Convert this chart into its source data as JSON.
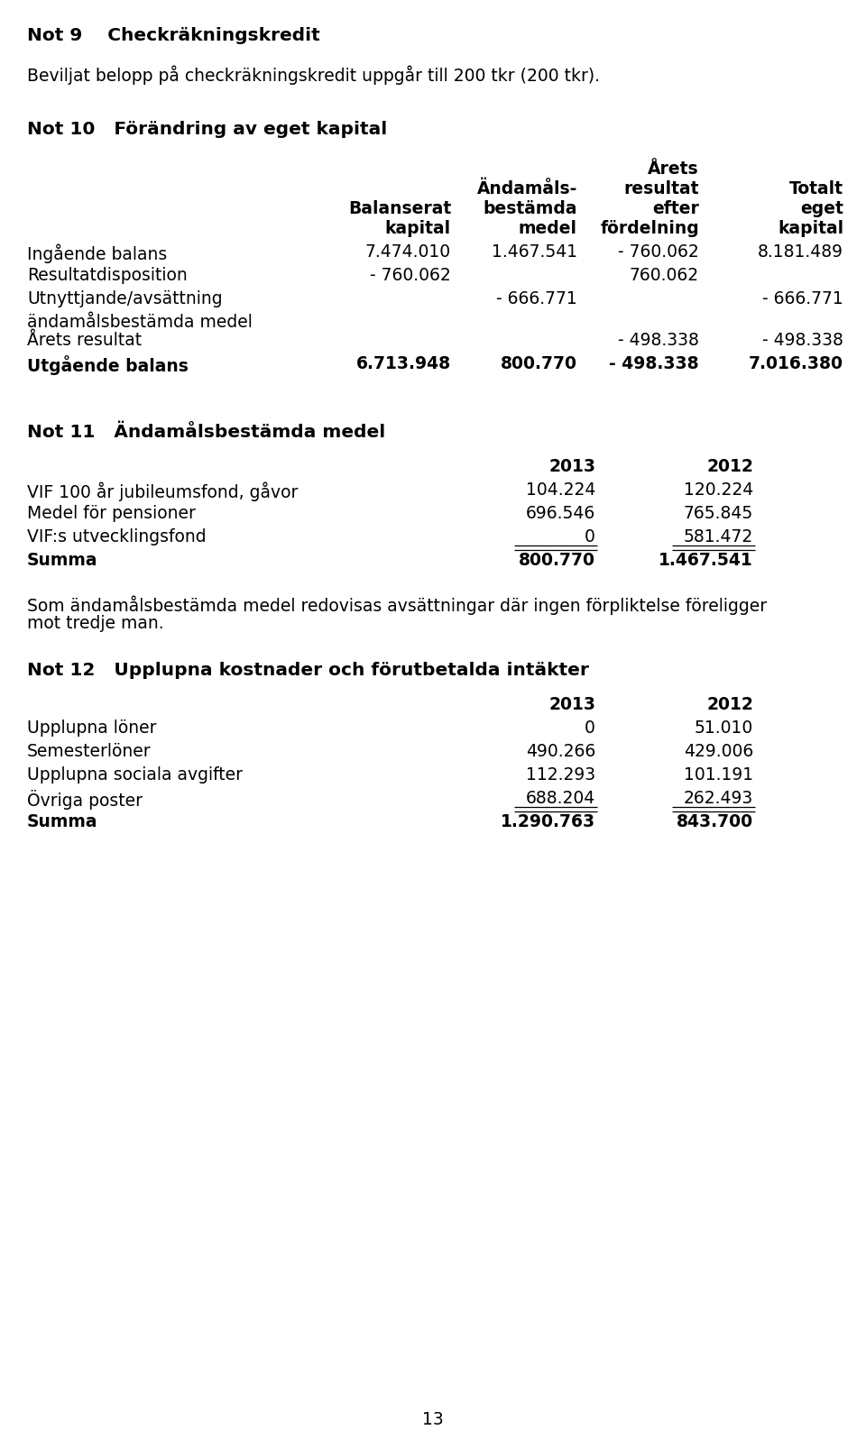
{
  "bg_color": "#ffffff",
  "page_number": "13",
  "not9_title": "Not 9    Checkräkningskredit",
  "not9_body": "Beviljat belopp på checkräkningskredit uppgår till 200 tkr (200 tkr).",
  "not10_title": "Not 10   Förändring av eget kapital",
  "not10_rows": [
    {
      "label": "Ingående balans",
      "col1": "7.474.010",
      "col2": "1.467.541",
      "col3": "- 760.062",
      "col4": "8.181.489",
      "bold": false
    },
    {
      "label": "Resultatdisposition",
      "col1": "- 760.062",
      "col2": "",
      "col3": "760.062",
      "col4": "",
      "bold": false
    },
    {
      "label": "Utnyttjande/avsättning",
      "col1": "",
      "col2": "- 666.771",
      "col3": "",
      "col4": "- 666.771",
      "bold": false
    },
    {
      "label": "ändamålsbestämda medel",
      "col1": "",
      "col2": "",
      "col3": "",
      "col4": "",
      "bold": false,
      "short": true
    },
    {
      "label": "Årets resultat",
      "col1": "",
      "col2": "",
      "col3": "- 498.338",
      "col4": "- 498.338",
      "bold": false
    },
    {
      "label": "Utgående balans",
      "col1": "6.713.948",
      "col2": "800.770",
      "col3": "- 498.338",
      "col4": "7.016.380",
      "bold": true
    }
  ],
  "not11_title": "Not 11   Ändamålsbestämda medel",
  "not11_rows": [
    {
      "label": "VIF 100 år jubileumsfond, gåvor",
      "col1": "104.224",
      "col2": "120.224",
      "bold": false,
      "underline": false
    },
    {
      "label": "Medel för pensioner",
      "col1": "696.546",
      "col2": "765.845",
      "bold": false,
      "underline": false
    },
    {
      "label": "VIF:s utvecklingsfond",
      "col1": "0",
      "col2": "581.472",
      "bold": false,
      "underline": true
    },
    {
      "label": "Summa",
      "col1": "800.770",
      "col2": "1.467.541",
      "bold": true,
      "underline": false
    }
  ],
  "not11_note_line1": "Som ändamålsbestämda medel redovisas avsättningar där ingen förpliktelse föreligger",
  "not11_note_line2": "mot tredje man.",
  "not12_title": "Not 12   Upplupna kostnader och förutbetalda intäkter",
  "not12_rows": [
    {
      "label": "Upplupna löner",
      "col1": "0",
      "col2": "51.010",
      "bold": false,
      "underline": false
    },
    {
      "label": "Semesterlöner",
      "col1": "490.266",
      "col2": "429.006",
      "bold": false,
      "underline": false
    },
    {
      "label": "Upplupna sociala avgifter",
      "col1": "112.293",
      "col2": "101.191",
      "bold": false,
      "underline": false
    },
    {
      "label": "Övriga poster",
      "col1": "688.204",
      "col2": "262.493",
      "bold": false,
      "underline": true
    },
    {
      "label": "Summa",
      "col1": "1.290.763",
      "col2": "843.700",
      "bold": true,
      "underline": false
    }
  ]
}
